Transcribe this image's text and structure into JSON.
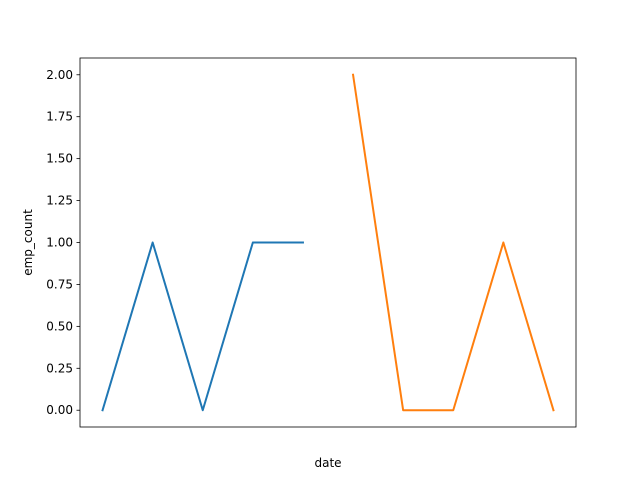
{
  "chart_data": {
    "type": "line",
    "title": "",
    "xlabel": "date",
    "ylabel": "emp_count",
    "x_tick_labels_shown": false,
    "x": [
      0,
      1,
      2,
      3,
      4,
      5,
      6,
      7,
      8,
      9
    ],
    "ylim": [
      -0.1,
      2.1
    ],
    "yticks": [
      "0.00",
      "0.25",
      "0.50",
      "0.75",
      "1.00",
      "1.25",
      "1.50",
      "1.75",
      "2.00"
    ],
    "grid": false,
    "legend": "none",
    "series": [
      {
        "color": "#1f77b4",
        "points": [
          [
            0,
            0
          ],
          [
            1,
            1
          ],
          [
            2,
            0
          ],
          [
            3,
            1
          ],
          [
            4,
            1
          ]
        ]
      },
      {
        "color": "#ff7f0e",
        "points": [
          [
            5,
            2
          ],
          [
            6,
            0
          ],
          [
            7,
            0
          ],
          [
            8,
            1
          ],
          [
            9,
            0
          ]
        ]
      }
    ]
  }
}
